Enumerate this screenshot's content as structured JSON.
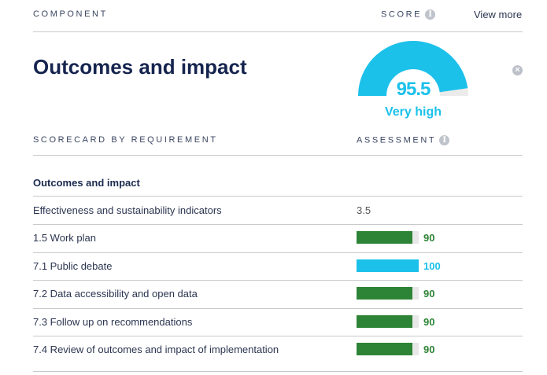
{
  "header": {
    "component_label": "COMPONENT",
    "score_label": "SCORE",
    "view_more": "View more"
  },
  "component": {
    "title": "Outcomes and impact",
    "score": "95.5",
    "score_value": 95.5,
    "score_max": 100,
    "rating": "Very high"
  },
  "scorecard": {
    "heading": "SCORECARD BY REQUIREMENT",
    "assessment_heading": "ASSESSMENT",
    "group_title": "Outcomes and impact",
    "rows": [
      {
        "label": "Effectiveness and sustainability indicators",
        "value": "3.5",
        "type": "text"
      },
      {
        "label": "1.5 Work plan",
        "value": "90",
        "percent": 90,
        "type": "bar",
        "color": "#2e8436"
      },
      {
        "label": "7.1 Public debate",
        "value": "100",
        "percent": 100,
        "type": "bar",
        "color": "#1cc1ea"
      },
      {
        "label": "7.2 Data accessibility and open data",
        "value": "90",
        "percent": 90,
        "type": "bar",
        "color": "#2e8436"
      },
      {
        "label": "7.3 Follow up on recommendations",
        "value": "90",
        "percent": 90,
        "type": "bar",
        "color": "#2e8436"
      },
      {
        "label": "7.4 Review of outcomes and impact of implementation",
        "value": "90",
        "percent": 90,
        "type": "bar",
        "color": "#2e8436"
      }
    ]
  },
  "colors": {
    "accent": "#1cc1ea",
    "good": "#2e8436",
    "track": "#e8e8e8",
    "title": "#16254f"
  },
  "icons": {
    "info": "info-icon",
    "close": "close-icon"
  }
}
